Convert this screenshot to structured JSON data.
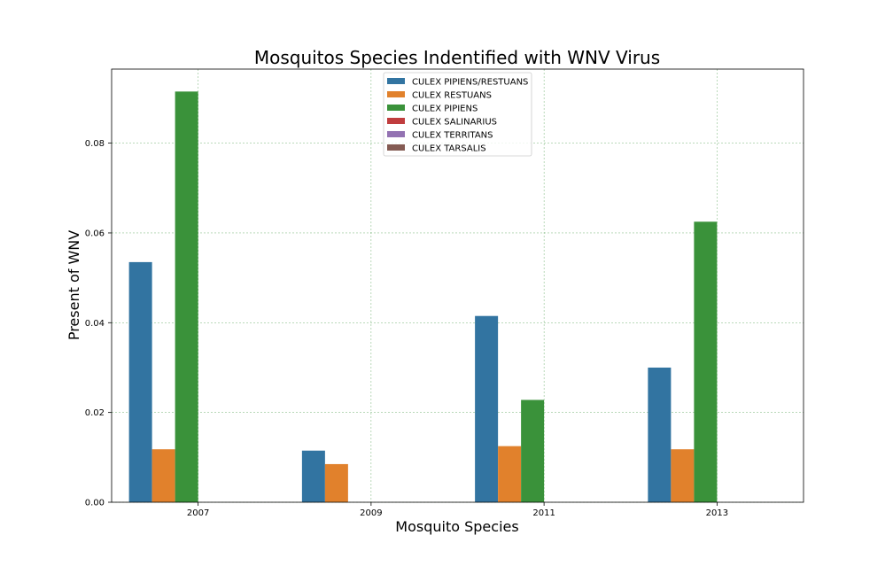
{
  "chart_data": {
    "type": "bar",
    "title": "Mosquitos Species Indentified with WNV Virus",
    "xlabel": "Mosquito Species",
    "ylabel": "Present of WNV",
    "categories": [
      "2007",
      "2009",
      "2011",
      "2013"
    ],
    "ylim": [
      0,
      0.0965
    ],
    "yticks": [
      0.0,
      0.02,
      0.04,
      0.06,
      0.08
    ],
    "ytick_labels": [
      "0.00",
      "0.02",
      "0.04",
      "0.06",
      "0.08"
    ],
    "grid": true,
    "legend_position": "top-center",
    "series": [
      {
        "name": "CULEX PIPIENS/RESTUANS",
        "color": "#3274a1",
        "values": [
          0.0535,
          0.0115,
          0.0415,
          0.03
        ]
      },
      {
        "name": "CULEX RESTUANS",
        "color": "#e1812c",
        "values": [
          0.0118,
          0.0085,
          0.0125,
          0.0118
        ]
      },
      {
        "name": "CULEX PIPIENS",
        "color": "#3a923a",
        "values": [
          0.0915,
          0,
          0.0228,
          0.0625
        ]
      },
      {
        "name": "CULEX SALINARIUS",
        "color": "#c03d3e",
        "values": [
          0,
          0,
          0,
          0
        ]
      },
      {
        "name": "CULEX TERRITANS",
        "color": "#9372b2",
        "values": [
          0,
          0,
          0,
          0
        ]
      },
      {
        "name": "CULEX TARSALIS",
        "color": "#845b53",
        "values": [
          0,
          0,
          0,
          0
        ]
      }
    ]
  }
}
